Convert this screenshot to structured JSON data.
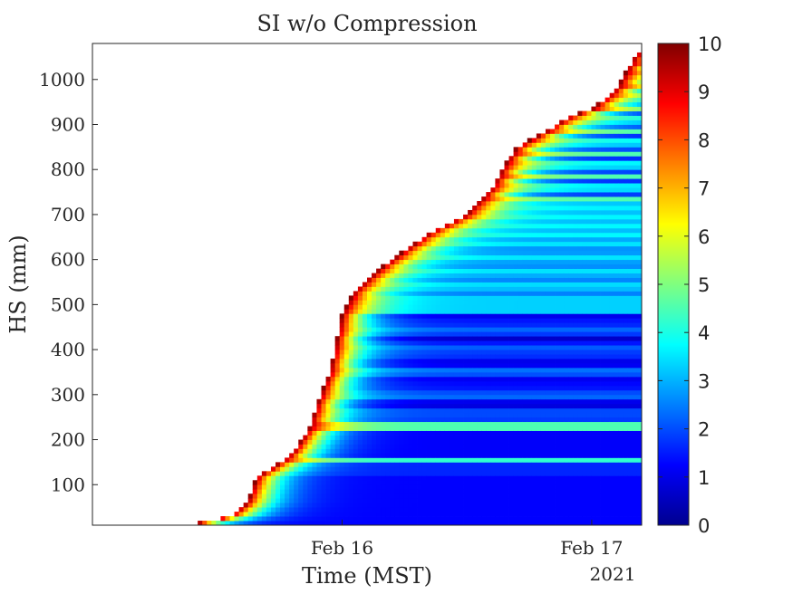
{
  "chart_data": {
    "type": "heatmap",
    "title": "SI w/o Compression",
    "xlabel": "Time (MST)",
    "ylabel": "HS (mm)",
    "x_year_label": "2021",
    "x_ticks": [
      {
        "label": "Feb 16",
        "value": 1.0
      },
      {
        "label": "Feb 17",
        "value": 2.0
      }
    ],
    "xlim": [
      0.0,
      2.2
    ],
    "ylim": [
      10,
      1080
    ],
    "y_ticks": [
      100,
      200,
      300,
      400,
      500,
      600,
      700,
      800,
      900,
      1000
    ],
    "colorbar": {
      "colormap": "jet",
      "min": 0,
      "max": 10,
      "ticks": [
        0,
        1,
        2,
        3,
        4,
        5,
        6,
        7,
        8,
        9,
        10
      ]
    },
    "snow_surface": {
      "time": [
        0.3,
        0.4,
        0.55,
        0.62,
        0.66,
        0.7,
        0.8,
        0.85,
        0.87,
        0.9,
        0.95,
        1.0,
        1.05,
        1.15,
        1.25,
        1.35,
        1.5,
        1.52,
        1.55,
        1.6,
        1.65,
        1.7,
        1.8,
        1.9,
        2.0,
        2.1,
        2.17,
        2.2
      ],
      "hs": [
        10,
        12,
        30,
        60,
        120,
        130,
        170,
        210,
        230,
        280,
        350,
        480,
        530,
        580,
        620,
        660,
        700,
        715,
        730,
        760,
        810,
        850,
        880,
        915,
        935,
        980,
        1050,
        1070
      ]
    },
    "layer_boundaries": [
      {
        "hs": 120,
        "si_above": 9,
        "si_below": 1.3
      },
      {
        "hs": 155,
        "si_above": 2,
        "si_below": 1.2
      },
      {
        "hs": 225,
        "si_above": 1.5,
        "si_below": 1.2
      },
      {
        "hs": 240,
        "si_above": 2.5,
        "si_below": 1.3
      },
      {
        "hs": 485,
        "si_above": 8,
        "si_below": 2.0
      },
      {
        "hs": 650,
        "si_above": 9,
        "si_below": 3.3
      },
      {
        "hs": 730,
        "si_above": 9,
        "si_below": 3.5
      }
    ]
  }
}
